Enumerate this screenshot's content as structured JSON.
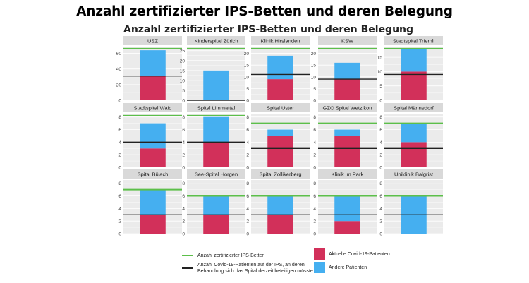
{
  "banner_title": "Anzahl zertifizierter IPS-Betten und deren Belegung",
  "colors": {
    "covid": "#d2305a",
    "other": "#45aff0",
    "certified_line": "#5cbf4a",
    "needed_line": "#222222",
    "panel_bg": "#ebebeb",
    "strip_bg": "#d9d9d9",
    "gridline": "#ffffff"
  },
  "legend": {
    "certified_label": "Anzahl zertifizierter IPS-Betten",
    "needed_label_line1": "Anzahl Covid-19-Patienten auf der IPS, an deren",
    "needed_label_line2": "Behandlung sich das Spital derzeit beteiligen müsste",
    "covid_label": "Aktuelle Covid-19-Patienten",
    "other_label": "Andere Patienten"
  },
  "chart_data": {
    "type": "bar",
    "title": "Anzahl zertifizierter IPS-Betten und deren Belegung",
    "stacked": true,
    "series": [
      {
        "name": "Aktuelle Covid-19-Patienten",
        "key": "covid"
      },
      {
        "name": "Andere Patienten",
        "key": "other"
      }
    ],
    "reference_lines": [
      {
        "name": "Anzahl zertifizierter IPS-Betten",
        "key": "certified"
      },
      {
        "name": "Anzahl Covid-19-Patienten auf der IPS, an deren Behandlung sich das Spital derzeit beteiligen müsste",
        "key": "needed"
      }
    ],
    "panels": [
      {
        "name": "USZ",
        "ymax": 66,
        "ticks": [
          0,
          20,
          40,
          60
        ],
        "tick_labels": [
          "0",
          "20",
          "40",
          "60"
        ],
        "covid": 31,
        "other": 33,
        "certified": 66,
        "needed": 31,
        "show_ticks": false
      },
      {
        "name": "Kinderspital Zürich",
        "ymax": 26,
        "ticks": [
          0,
          5,
          10,
          15,
          20,
          25
        ],
        "tick_labels": [
          "0",
          "5",
          "10",
          "15",
          "20",
          "25"
        ],
        "covid": 0,
        "other": 15,
        "certified": 26,
        "needed": 0,
        "show_ticks": true
      },
      {
        "name": "Klinik Hirslanden",
        "ymax": 22,
        "ticks": [
          0,
          5,
          10,
          15,
          20
        ],
        "tick_labels": [
          "0",
          "5",
          "10",
          "15",
          "20"
        ],
        "covid": 9,
        "other": 10,
        "certified": 22,
        "needed": 11,
        "show_ticks": true
      },
      {
        "name": "KSW",
        "ymax": 22,
        "ticks": [
          0,
          5,
          10,
          15,
          20
        ],
        "tick_labels": [
          "0",
          "5",
          "10",
          "15",
          "20"
        ],
        "covid": 9,
        "other": 7,
        "certified": 22,
        "needed": 9,
        "show_ticks": true
      },
      {
        "name": "Stadtspital Triemli",
        "ymax": 18,
        "ticks": [
          0,
          5,
          10,
          15
        ],
        "tick_labels": [
          "0",
          "5",
          "10",
          "15"
        ],
        "covid": 10,
        "other": 8,
        "certified": 18,
        "needed": 9,
        "show_ticks": true
      },
      {
        "name": "Stadtspital Waid",
        "ymax": 8.2,
        "ticks": [
          0,
          2,
          4,
          6,
          8
        ],
        "tick_labels": [
          "0",
          "2",
          "4",
          "6",
          "8"
        ],
        "covid": 3,
        "other": 4,
        "certified": 8.2,
        "needed": 4,
        "show_ticks": true
      },
      {
        "name": "Spital Limmattal",
        "ymax": 8.2,
        "ticks": [
          0,
          2,
          4,
          6,
          8
        ],
        "tick_labels": [
          "0",
          "2",
          "4",
          "6",
          "8"
        ],
        "covid": 4,
        "other": 4,
        "certified": 8.2,
        "needed": 4,
        "show_ticks": true
      },
      {
        "name": "Spital Uster",
        "ymax": 8.2,
        "ticks": [
          0,
          2,
          4,
          6,
          8
        ],
        "tick_labels": [
          "0",
          "2",
          "4",
          "6",
          "8"
        ],
        "covid": 5,
        "other": 1,
        "certified": 7,
        "needed": 3,
        "show_ticks": true
      },
      {
        "name": "GZO Spital Wetzikon",
        "ymax": 8.2,
        "ticks": [
          0,
          2,
          4,
          6,
          8
        ],
        "tick_labels": [
          "0",
          "2",
          "4",
          "6",
          "8"
        ],
        "covid": 5,
        "other": 1,
        "certified": 7,
        "needed": 3,
        "show_ticks": true
      },
      {
        "name": "Spital Männedorf",
        "ymax": 8.2,
        "ticks": [
          0,
          2,
          4,
          6,
          8
        ],
        "tick_labels": [
          "0",
          "2",
          "4",
          "6",
          "8"
        ],
        "covid": 4,
        "other": 3,
        "certified": 7,
        "needed": 3,
        "show_ticks": true
      },
      {
        "name": "Spital Bülach",
        "ymax": 8.2,
        "ticks": [
          0,
          2,
          4,
          6,
          8
        ],
        "tick_labels": [
          "0",
          "2",
          "4",
          "6",
          "8"
        ],
        "covid": 3,
        "other": 4,
        "certified": 7,
        "needed": 3,
        "show_ticks": true
      },
      {
        "name": "See-Spital Horgen",
        "ymax": 8.2,
        "ticks": [
          0,
          2,
          4,
          6,
          8
        ],
        "tick_labels": [
          "0",
          "2",
          "4",
          "6",
          "8"
        ],
        "covid": 3,
        "other": 3,
        "certified": 6,
        "needed": 3,
        "show_ticks": true
      },
      {
        "name": "Spital Zollikerberg",
        "ymax": 8.2,
        "ticks": [
          0,
          2,
          4,
          6,
          8
        ],
        "tick_labels": [
          "0",
          "2",
          "4",
          "6",
          "8"
        ],
        "covid": 3,
        "other": 3,
        "certified": 6,
        "needed": 3,
        "show_ticks": true
      },
      {
        "name": "Klinik im Park",
        "ymax": 8.2,
        "ticks": [
          0,
          2,
          4,
          6,
          8
        ],
        "tick_labels": [
          "0",
          "2",
          "4",
          "6",
          "8"
        ],
        "covid": 2,
        "other": 4,
        "certified": 6,
        "needed": 3,
        "show_ticks": true
      },
      {
        "name": "Uniklinik Balgrist",
        "ymax": 8.2,
        "ticks": [
          0,
          2,
          4,
          6,
          8
        ],
        "tick_labels": [
          "0",
          "2",
          "4",
          "6",
          "8"
        ],
        "covid": 0,
        "other": 6,
        "certified": 6,
        "needed": 3,
        "show_ticks": true
      }
    ]
  }
}
